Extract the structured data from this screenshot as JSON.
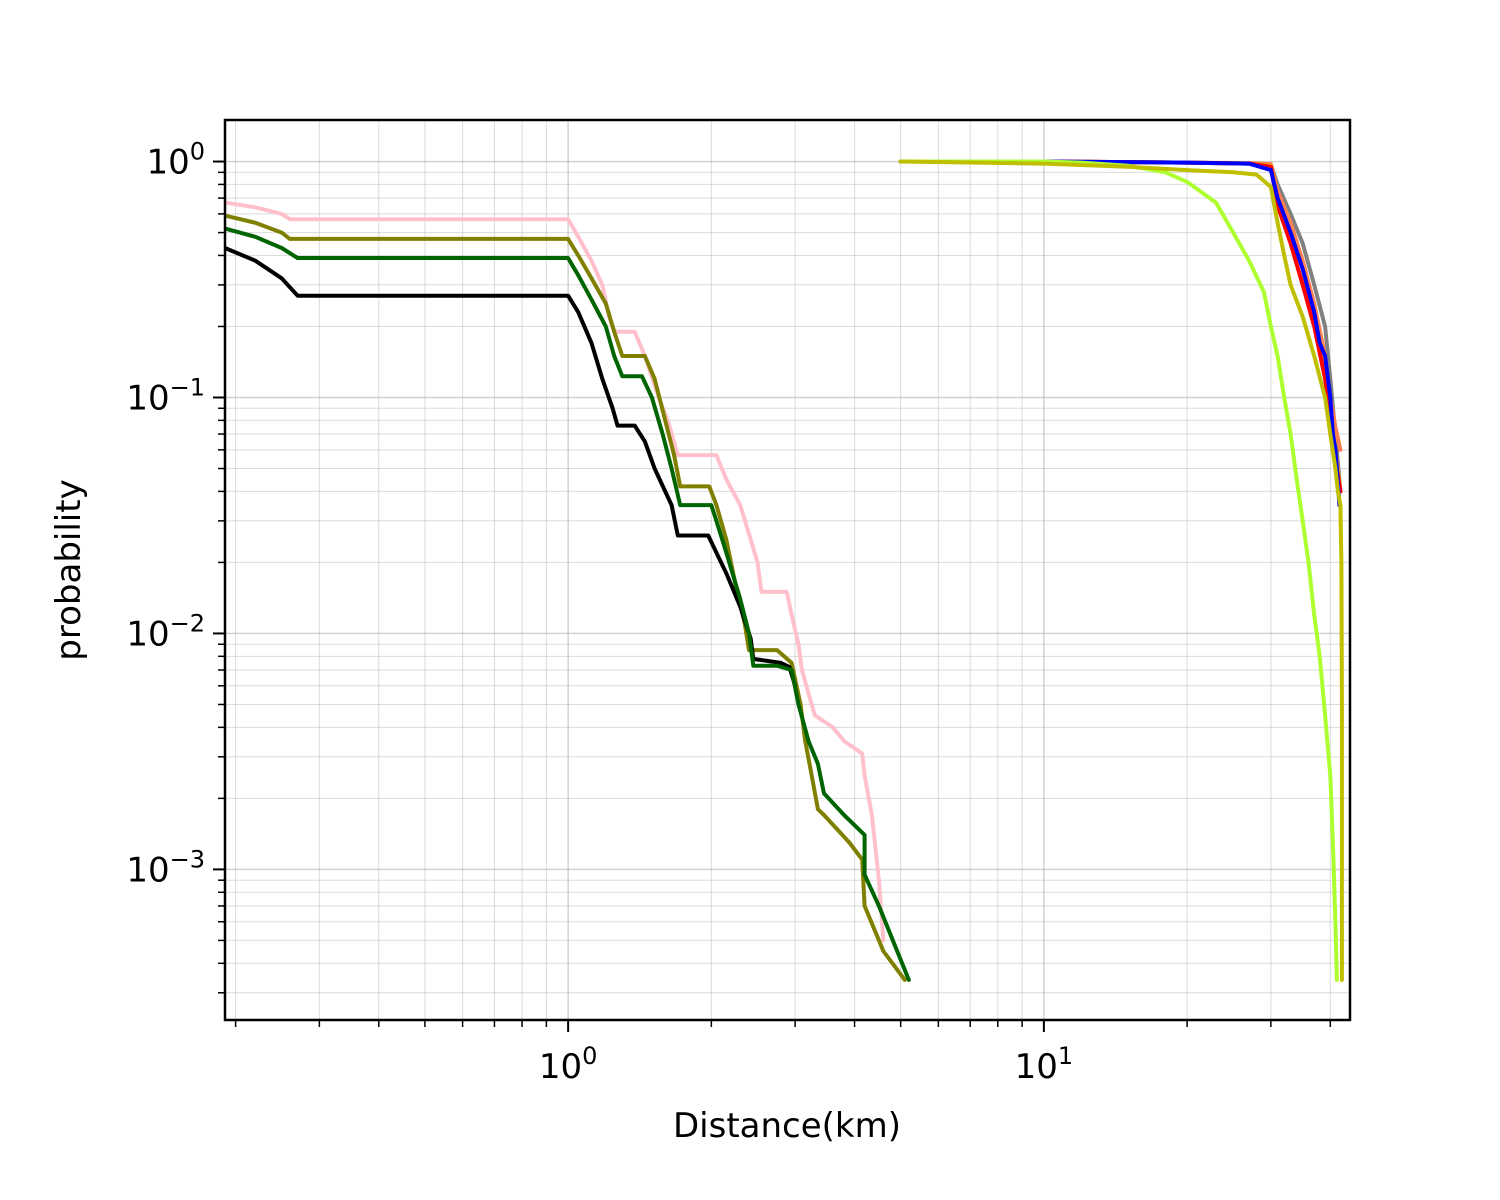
{
  "chart_data": {
    "type": "line",
    "title": "",
    "xlabel": "Distance(km)",
    "ylabel": "probability",
    "xscale": "log",
    "yscale": "log",
    "xlim": [
      0.19,
      44
    ],
    "ylim": [
      0.00023,
      1.5
    ],
    "grid": true,
    "x_ticks": [
      {
        "value": 1,
        "base": "10",
        "exp": "0"
      },
      {
        "value": 10,
        "base": "10",
        "exp": "1"
      }
    ],
    "y_ticks": [
      {
        "value": 1,
        "base": "10",
        "exp": "0"
      },
      {
        "value": 0.1,
        "base": "10",
        "exp": "−1"
      },
      {
        "value": 0.01,
        "base": "10",
        "exp": "−2"
      },
      {
        "value": 0.001,
        "base": "10",
        "exp": "−3"
      }
    ],
    "series": [
      {
        "color": "#ffc0cb",
        "points": [
          [
            0.19,
            0.67
          ],
          [
            0.22,
            0.64
          ],
          [
            0.25,
            0.6
          ],
          [
            0.26,
            0.57
          ],
          [
            1.0,
            0.57
          ],
          [
            1.05,
            0.48
          ],
          [
            1.12,
            0.38
          ],
          [
            1.18,
            0.3
          ],
          [
            1.22,
            0.22
          ],
          [
            1.25,
            0.19
          ],
          [
            1.38,
            0.19
          ],
          [
            1.45,
            0.15
          ],
          [
            1.55,
            0.1
          ],
          [
            1.62,
            0.08
          ],
          [
            1.7,
            0.057
          ],
          [
            2.05,
            0.057
          ],
          [
            2.15,
            0.045
          ],
          [
            2.3,
            0.035
          ],
          [
            2.42,
            0.025
          ],
          [
            2.5,
            0.02
          ],
          [
            2.55,
            0.015
          ],
          [
            2.88,
            0.015
          ],
          [
            2.95,
            0.012
          ],
          [
            3.05,
            0.009
          ],
          [
            3.1,
            0.007
          ],
          [
            3.3,
            0.0045
          ],
          [
            3.6,
            0.004
          ],
          [
            3.8,
            0.0035
          ],
          [
            4.15,
            0.0031
          ],
          [
            4.2,
            0.0025
          ],
          [
            4.35,
            0.0017
          ],
          [
            4.5,
            0.0009
          ],
          [
            4.6,
            0.0005
          ]
        ]
      },
      {
        "color": "#808000",
        "points": [
          [
            0.19,
            0.59
          ],
          [
            0.22,
            0.55
          ],
          [
            0.25,
            0.5
          ],
          [
            0.26,
            0.47
          ],
          [
            1.0,
            0.47
          ],
          [
            1.05,
            0.4
          ],
          [
            1.12,
            0.32
          ],
          [
            1.2,
            0.25
          ],
          [
            1.25,
            0.19
          ],
          [
            1.3,
            0.15
          ],
          [
            1.45,
            0.15
          ],
          [
            1.52,
            0.12
          ],
          [
            1.6,
            0.08
          ],
          [
            1.67,
            0.057
          ],
          [
            1.72,
            0.042
          ],
          [
            1.98,
            0.042
          ],
          [
            2.05,
            0.035
          ],
          [
            2.15,
            0.025
          ],
          [
            2.25,
            0.016
          ],
          [
            2.35,
            0.011
          ],
          [
            2.4,
            0.0085
          ],
          [
            2.75,
            0.0085
          ],
          [
            2.95,
            0.0075
          ],
          [
            3.08,
            0.005
          ],
          [
            3.15,
            0.0035
          ],
          [
            3.25,
            0.0025
          ],
          [
            3.35,
            0.0018
          ],
          [
            3.45,
            0.0017
          ],
          [
            3.9,
            0.0013
          ],
          [
            4.15,
            0.0011
          ],
          [
            4.2,
            0.0007
          ],
          [
            4.6,
            0.00045
          ],
          [
            5.1,
            0.00034
          ]
        ]
      },
      {
        "color": "#000000",
        "points": [
          [
            0.19,
            0.43
          ],
          [
            0.22,
            0.38
          ],
          [
            0.25,
            0.32
          ],
          [
            0.27,
            0.27
          ],
          [
            1.0,
            0.27
          ],
          [
            1.05,
            0.23
          ],
          [
            1.12,
            0.17
          ],
          [
            1.18,
            0.12
          ],
          [
            1.24,
            0.09
          ],
          [
            1.27,
            0.076
          ],
          [
            1.38,
            0.076
          ],
          [
            1.45,
            0.065
          ],
          [
            1.52,
            0.05
          ],
          [
            1.6,
            0.04
          ],
          [
            1.65,
            0.035
          ],
          [
            1.7,
            0.026
          ],
          [
            1.97,
            0.026
          ],
          [
            2.05,
            0.022
          ],
          [
            2.15,
            0.018
          ],
          [
            2.3,
            0.013
          ],
          [
            2.42,
            0.0095
          ],
          [
            2.45,
            0.0078
          ],
          [
            2.8,
            0.0075
          ],
          [
            2.92,
            0.0072
          ],
          [
            3.0,
            0.006
          ]
        ]
      },
      {
        "color": "#006400",
        "points": [
          [
            0.19,
            0.52
          ],
          [
            0.22,
            0.48
          ],
          [
            0.25,
            0.43
          ],
          [
            0.27,
            0.39
          ],
          [
            1.0,
            0.39
          ],
          [
            1.05,
            0.33
          ],
          [
            1.12,
            0.26
          ],
          [
            1.2,
            0.2
          ],
          [
            1.25,
            0.15
          ],
          [
            1.3,
            0.123
          ],
          [
            1.43,
            0.123
          ],
          [
            1.5,
            0.1
          ],
          [
            1.58,
            0.07
          ],
          [
            1.65,
            0.05
          ],
          [
            1.72,
            0.035
          ],
          [
            2.0,
            0.035
          ],
          [
            2.05,
            0.03
          ],
          [
            2.15,
            0.022
          ],
          [
            2.3,
            0.014
          ],
          [
            2.4,
            0.01
          ],
          [
            2.45,
            0.0073
          ],
          [
            2.75,
            0.0073
          ],
          [
            2.95,
            0.007
          ],
          [
            3.05,
            0.005
          ],
          [
            3.2,
            0.0035
          ],
          [
            3.35,
            0.0028
          ],
          [
            3.45,
            0.0021
          ],
          [
            3.8,
            0.0017
          ],
          [
            4.2,
            0.0014
          ],
          [
            4.2,
            0.00095
          ],
          [
            4.5,
            0.0007
          ],
          [
            5.2,
            0.00034
          ]
        ]
      },
      {
        "color": "#808080",
        "points": [
          [
            5.0,
            1.0
          ],
          [
            10,
            1.0
          ],
          [
            20,
            0.99
          ],
          [
            27,
            0.98
          ],
          [
            30,
            0.97
          ],
          [
            31,
            0.8
          ],
          [
            33,
            0.6
          ],
          [
            35,
            0.45
          ],
          [
            37,
            0.3
          ],
          [
            39,
            0.2
          ],
          [
            40,
            0.12
          ],
          [
            41,
            0.07
          ],
          [
            42,
            0.04
          ]
        ]
      },
      {
        "color": "#ff7f50",
        "points": [
          [
            5.0,
            1.0
          ],
          [
            10,
            1.0
          ],
          [
            20,
            0.99
          ],
          [
            27,
            0.985
          ],
          [
            30,
            0.975
          ],
          [
            31,
            0.75
          ],
          [
            33,
            0.55
          ],
          [
            35,
            0.38
          ],
          [
            37,
            0.25
          ],
          [
            39,
            0.15
          ],
          [
            40,
            0.1
          ],
          [
            41,
            0.075
          ],
          [
            42,
            0.06
          ]
        ]
      },
      {
        "color": "#ffa500",
        "points": [
          [
            5.0,
            1.0
          ],
          [
            10,
            1.0
          ],
          [
            20,
            0.99
          ],
          [
            27,
            0.98
          ],
          [
            30,
            0.96
          ],
          [
            31,
            0.7
          ],
          [
            33,
            0.5
          ],
          [
            35,
            0.35
          ],
          [
            37,
            0.22
          ],
          [
            39,
            0.14
          ],
          [
            40,
            0.09
          ],
          [
            41,
            0.06
          ],
          [
            42,
            0.04
          ]
        ]
      },
      {
        "color": "#ff0000",
        "points": [
          [
            5.0,
            1.0
          ],
          [
            10,
            1.0
          ],
          [
            20,
            0.99
          ],
          [
            27,
            0.98
          ],
          [
            30,
            0.95
          ],
          [
            31,
            0.65
          ],
          [
            33,
            0.45
          ],
          [
            35,
            0.3
          ],
          [
            37,
            0.2
          ],
          [
            39,
            0.12
          ],
          [
            40,
            0.08
          ],
          [
            41,
            0.055
          ],
          [
            42,
            0.04
          ]
        ]
      },
      {
        "color": "#0000ff",
        "points": [
          [
            5.0,
            1.0
          ],
          [
            10,
            1.0
          ],
          [
            20,
            0.99
          ],
          [
            27,
            0.98
          ],
          [
            30,
            0.92
          ],
          [
            31,
            0.7
          ],
          [
            33,
            0.5
          ],
          [
            35,
            0.35
          ],
          [
            37,
            0.23
          ],
          [
            38,
            0.17
          ],
          [
            39,
            0.15
          ],
          [
            40,
            0.1
          ],
          [
            40.5,
            0.07
          ],
          [
            41,
            0.06
          ],
          [
            41.3,
            0.05
          ],
          [
            41.8,
            0.035
          ]
        ]
      },
      {
        "color": "#adff2f",
        "points": [
          [
            5.0,
            1.0
          ],
          [
            10,
            1.0
          ],
          [
            12,
            0.99
          ],
          [
            15,
            0.96
          ],
          [
            18,
            0.9
          ],
          [
            20,
            0.82
          ],
          [
            23,
            0.67
          ],
          [
            25,
            0.5
          ],
          [
            27,
            0.38
          ],
          [
            29,
            0.28
          ],
          [
            30,
            0.2
          ],
          [
            31,
            0.15
          ],
          [
            32,
            0.1
          ],
          [
            33,
            0.07
          ],
          [
            34,
            0.045
          ],
          [
            35,
            0.03
          ],
          [
            36,
            0.02
          ],
          [
            37,
            0.012
          ],
          [
            38,
            0.008
          ],
          [
            39,
            0.0045
          ],
          [
            40,
            0.0025
          ],
          [
            40.5,
            0.0013
          ],
          [
            41,
            0.0006
          ],
          [
            41.3,
            0.00034
          ]
        ]
      },
      {
        "color": "#bfbf00",
        "points": [
          [
            5.0,
            1.0
          ],
          [
            10,
            0.98
          ],
          [
            15,
            0.95
          ],
          [
            20,
            0.92
          ],
          [
            25,
            0.9
          ],
          [
            28,
            0.88
          ],
          [
            30,
            0.78
          ],
          [
            31,
            0.55
          ],
          [
            32,
            0.4
          ],
          [
            33,
            0.3
          ],
          [
            35,
            0.22
          ],
          [
            37,
            0.15
          ],
          [
            39,
            0.1
          ],
          [
            40,
            0.07
          ],
          [
            41,
            0.05
          ],
          [
            41.5,
            0.04
          ],
          [
            42,
            0.035
          ],
          [
            42.2,
            0.02
          ],
          [
            42.3,
            0.005
          ],
          [
            42.3,
            0.00034
          ]
        ]
      }
    ]
  }
}
